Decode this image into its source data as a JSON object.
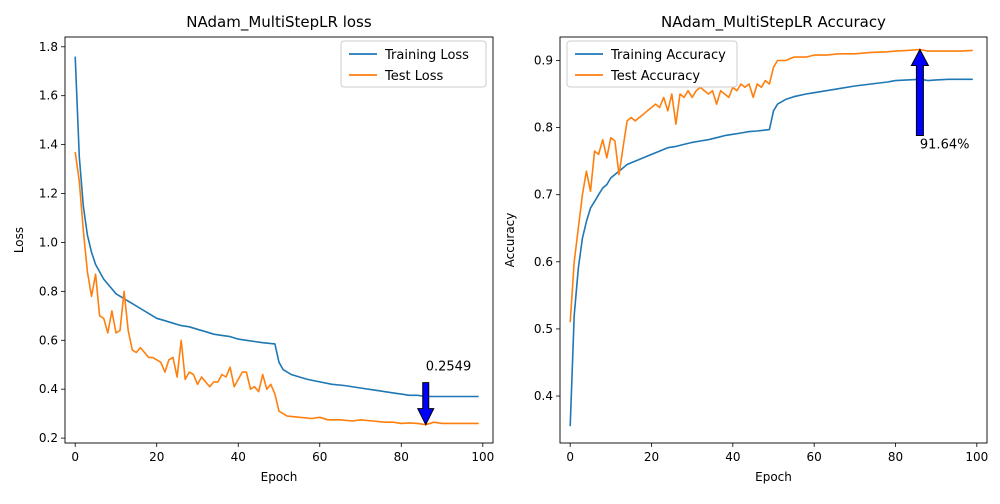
{
  "chart_data": [
    {
      "type": "line",
      "title": "NAdam_MultiStepLR loss",
      "xlabel": "Epoch",
      "ylabel": "Loss",
      "xlim": [
        -2.5,
        102.5
      ],
      "ylim": [
        0.18,
        1.84
      ],
      "xticks": [
        "0",
        "20",
        "40",
        "60",
        "80",
        "100"
      ],
      "yticks": [
        "0.2",
        "0.4",
        "0.6",
        "0.8",
        "1.0",
        "1.2",
        "1.4",
        "1.6",
        "1.8"
      ],
      "legend_position": "top-right",
      "grid": false,
      "series": [
        {
          "name": "Training Loss",
          "color": "#1f77b4",
          "points": [
            [
              0,
              1.76
            ],
            [
              1,
              1.35
            ],
            [
              2,
              1.15
            ],
            [
              3,
              1.03
            ],
            [
              4,
              0.96
            ],
            [
              5,
              0.91
            ],
            [
              6,
              0.88
            ],
            [
              7,
              0.85
            ],
            [
              8,
              0.83
            ],
            [
              9,
              0.81
            ],
            [
              10,
              0.79
            ],
            [
              12,
              0.77
            ],
            [
              14,
              0.75
            ],
            [
              16,
              0.73
            ],
            [
              18,
              0.71
            ],
            [
              20,
              0.69
            ],
            [
              22,
              0.68
            ],
            [
              24,
              0.67
            ],
            [
              26,
              0.66
            ],
            [
              28,
              0.655
            ],
            [
              30,
              0.645
            ],
            [
              32,
              0.635
            ],
            [
              34,
              0.625
            ],
            [
              36,
              0.62
            ],
            [
              38,
              0.615
            ],
            [
              40,
              0.605
            ],
            [
              42,
              0.6
            ],
            [
              44,
              0.595
            ],
            [
              46,
              0.59
            ],
            [
              49,
              0.585
            ],
            [
              50,
              0.51
            ],
            [
              51,
              0.48
            ],
            [
              53,
              0.46
            ],
            [
              55,
              0.45
            ],
            [
              57,
              0.44
            ],
            [
              60,
              0.43
            ],
            [
              63,
              0.42
            ],
            [
              66,
              0.415
            ],
            [
              70,
              0.405
            ],
            [
              74,
              0.395
            ],
            [
              78,
              0.385
            ],
            [
              80,
              0.38
            ],
            [
              82,
              0.375
            ],
            [
              84,
              0.375
            ],
            [
              86,
              0.37
            ],
            [
              88,
              0.37
            ],
            [
              90,
              0.37
            ],
            [
              93,
              0.37
            ],
            [
              96,
              0.37
            ],
            [
              99,
              0.37
            ]
          ]
        },
        {
          "name": "Test Loss",
          "color": "#ff7f0e",
          "points": [
            [
              0,
              1.37
            ],
            [
              1,
              1.25
            ],
            [
              2,
              1.05
            ],
            [
              3,
              0.88
            ],
            [
              4,
              0.78
            ],
            [
              5,
              0.87
            ],
            [
              6,
              0.7
            ],
            [
              7,
              0.69
            ],
            [
              8,
              0.63
            ],
            [
              9,
              0.72
            ],
            [
              10,
              0.63
            ],
            [
              11,
              0.64
            ],
            [
              12,
              0.8
            ],
            [
              13,
              0.64
            ],
            [
              14,
              0.56
            ],
            [
              15,
              0.55
            ],
            [
              16,
              0.57
            ],
            [
              17,
              0.55
            ],
            [
              18,
              0.53
            ],
            [
              19,
              0.53
            ],
            [
              20,
              0.52
            ],
            [
              21,
              0.51
            ],
            [
              22,
              0.47
            ],
            [
              23,
              0.52
            ],
            [
              24,
              0.53
            ],
            [
              25,
              0.45
            ],
            [
              26,
              0.6
            ],
            [
              27,
              0.44
            ],
            [
              28,
              0.47
            ],
            [
              29,
              0.46
            ],
            [
              30,
              0.42
            ],
            [
              31,
              0.45
            ],
            [
              32,
              0.43
            ],
            [
              33,
              0.41
            ],
            [
              34,
              0.43
            ],
            [
              35,
              0.43
            ],
            [
              36,
              0.46
            ],
            [
              37,
              0.45
            ],
            [
              38,
              0.49
            ],
            [
              39,
              0.41
            ],
            [
              40,
              0.44
            ],
            [
              41,
              0.47
            ],
            [
              42,
              0.47
            ],
            [
              43,
              0.4
            ],
            [
              44,
              0.41
            ],
            [
              45,
              0.39
            ],
            [
              46,
              0.46
            ],
            [
              47,
              0.4
            ],
            [
              48,
              0.42
            ],
            [
              49,
              0.38
            ],
            [
              50,
              0.31
            ],
            [
              51,
              0.3
            ],
            [
              52,
              0.29
            ],
            [
              55,
              0.285
            ],
            [
              58,
              0.28
            ],
            [
              60,
              0.285
            ],
            [
              62,
              0.275
            ],
            [
              65,
              0.275
            ],
            [
              68,
              0.27
            ],
            [
              70,
              0.275
            ],
            [
              73,
              0.27
            ],
            [
              76,
              0.265
            ],
            [
              78,
              0.265
            ],
            [
              80,
              0.26
            ],
            [
              82,
              0.262
            ],
            [
              84,
              0.26
            ],
            [
              86,
              0.2549
            ],
            [
              88,
              0.265
            ],
            [
              90,
              0.26
            ],
            [
              93,
              0.26
            ],
            [
              96,
              0.26
            ],
            [
              99,
              0.26
            ]
          ]
        }
      ],
      "annotation": {
        "text": "0.2549",
        "x": 86,
        "y": 0.2549,
        "arrow_color": "#0000ff"
      }
    },
    {
      "type": "line",
      "title": "NAdam_MultiStepLR Accuracy",
      "xlabel": "Epoch",
      "ylabel": "Accuracy",
      "xlim": [
        -2.5,
        102.5
      ],
      "ylim": [
        0.33,
        0.935
      ],
      "xticks": [
        "0",
        "20",
        "40",
        "60",
        "80",
        "100"
      ],
      "yticks": [
        "0.4",
        "0.5",
        "0.6",
        "0.7",
        "0.8",
        "0.9"
      ],
      "legend_position": "top-left",
      "grid": false,
      "series": [
        {
          "name": "Training Accuracy",
          "color": "#1f77b4",
          "points": [
            [
              0,
              0.355
            ],
            [
              1,
              0.52
            ],
            [
              2,
              0.59
            ],
            [
              3,
              0.635
            ],
            [
              4,
              0.66
            ],
            [
              5,
              0.68
            ],
            [
              6,
              0.69
            ],
            [
              7,
              0.7
            ],
            [
              8,
              0.71
            ],
            [
              9,
              0.715
            ],
            [
              10,
              0.725
            ],
            [
              12,
              0.735
            ],
            [
              14,
              0.745
            ],
            [
              16,
              0.75
            ],
            [
              18,
              0.755
            ],
            [
              20,
              0.76
            ],
            [
              22,
              0.765
            ],
            [
              24,
              0.77
            ],
            [
              26,
              0.772
            ],
            [
              28,
              0.775
            ],
            [
              30,
              0.778
            ],
            [
              32,
              0.78
            ],
            [
              34,
              0.782
            ],
            [
              36,
              0.785
            ],
            [
              38,
              0.788
            ],
            [
              40,
              0.79
            ],
            [
              42,
              0.792
            ],
            [
              44,
              0.794
            ],
            [
              46,
              0.795
            ],
            [
              49,
              0.797
            ],
            [
              50,
              0.825
            ],
            [
              51,
              0.835
            ],
            [
              53,
              0.842
            ],
            [
              55,
              0.846
            ],
            [
              58,
              0.85
            ],
            [
              60,
              0.852
            ],
            [
              63,
              0.855
            ],
            [
              66,
              0.858
            ],
            [
              70,
              0.862
            ],
            [
              74,
              0.865
            ],
            [
              78,
              0.868
            ],
            [
              80,
              0.87
            ],
            [
              83,
              0.871
            ],
            [
              86,
              0.872
            ],
            [
              88,
              0.87
            ],
            [
              90,
              0.871
            ],
            [
              93,
              0.872
            ],
            [
              96,
              0.872
            ],
            [
              99,
              0.872
            ]
          ]
        },
        {
          "name": "Test Accuracy",
          "color": "#ff7f0e",
          "points": [
            [
              0,
              0.51
            ],
            [
              1,
              0.6
            ],
            [
              2,
              0.65
            ],
            [
              3,
              0.7
            ],
            [
              4,
              0.735
            ],
            [
              5,
              0.705
            ],
            [
              6,
              0.765
            ],
            [
              7,
              0.76
            ],
            [
              8,
              0.782
            ],
            [
              9,
              0.755
            ],
            [
              10,
              0.785
            ],
            [
              11,
              0.78
            ],
            [
              12,
              0.73
            ],
            [
              13,
              0.77
            ],
            [
              14,
              0.81
            ],
            [
              15,
              0.815
            ],
            [
              16,
              0.81
            ],
            [
              17,
              0.815
            ],
            [
              18,
              0.82
            ],
            [
              19,
              0.825
            ],
            [
              20,
              0.83
            ],
            [
              21,
              0.835
            ],
            [
              22,
              0.83
            ],
            [
              23,
              0.845
            ],
            [
              24,
              0.825
            ],
            [
              25,
              0.85
            ],
            [
              26,
              0.805
            ],
            [
              27,
              0.85
            ],
            [
              28,
              0.845
            ],
            [
              29,
              0.855
            ],
            [
              30,
              0.845
            ],
            [
              31,
              0.855
            ],
            [
              32,
              0.86
            ],
            [
              33,
              0.855
            ],
            [
              34,
              0.85
            ],
            [
              35,
              0.855
            ],
            [
              36,
              0.835
            ],
            [
              37,
              0.855
            ],
            [
              38,
              0.85
            ],
            [
              39,
              0.845
            ],
            [
              40,
              0.86
            ],
            [
              41,
              0.855
            ],
            [
              42,
              0.865
            ],
            [
              43,
              0.86
            ],
            [
              44,
              0.865
            ],
            [
              45,
              0.845
            ],
            [
              46,
              0.865
            ],
            [
              47,
              0.86
            ],
            [
              48,
              0.87
            ],
            [
              49,
              0.865
            ],
            [
              50,
              0.89
            ],
            [
              51,
              0.9
            ],
            [
              53,
              0.9
            ],
            [
              55,
              0.905
            ],
            [
              58,
              0.905
            ],
            [
              60,
              0.908
            ],
            [
              63,
              0.908
            ],
            [
              66,
              0.91
            ],
            [
              70,
              0.91
            ],
            [
              74,
              0.912
            ],
            [
              78,
              0.913
            ],
            [
              80,
              0.914
            ],
            [
              83,
              0.915
            ],
            [
              86,
              0.9164
            ],
            [
              88,
              0.914
            ],
            [
              90,
              0.914
            ],
            [
              93,
              0.914
            ],
            [
              96,
              0.914
            ],
            [
              99,
              0.915
            ]
          ]
        }
      ],
      "annotation": {
        "text": "91.64%",
        "x": 86,
        "y": 0.9164,
        "arrow_color": "#0000ff"
      }
    }
  ]
}
